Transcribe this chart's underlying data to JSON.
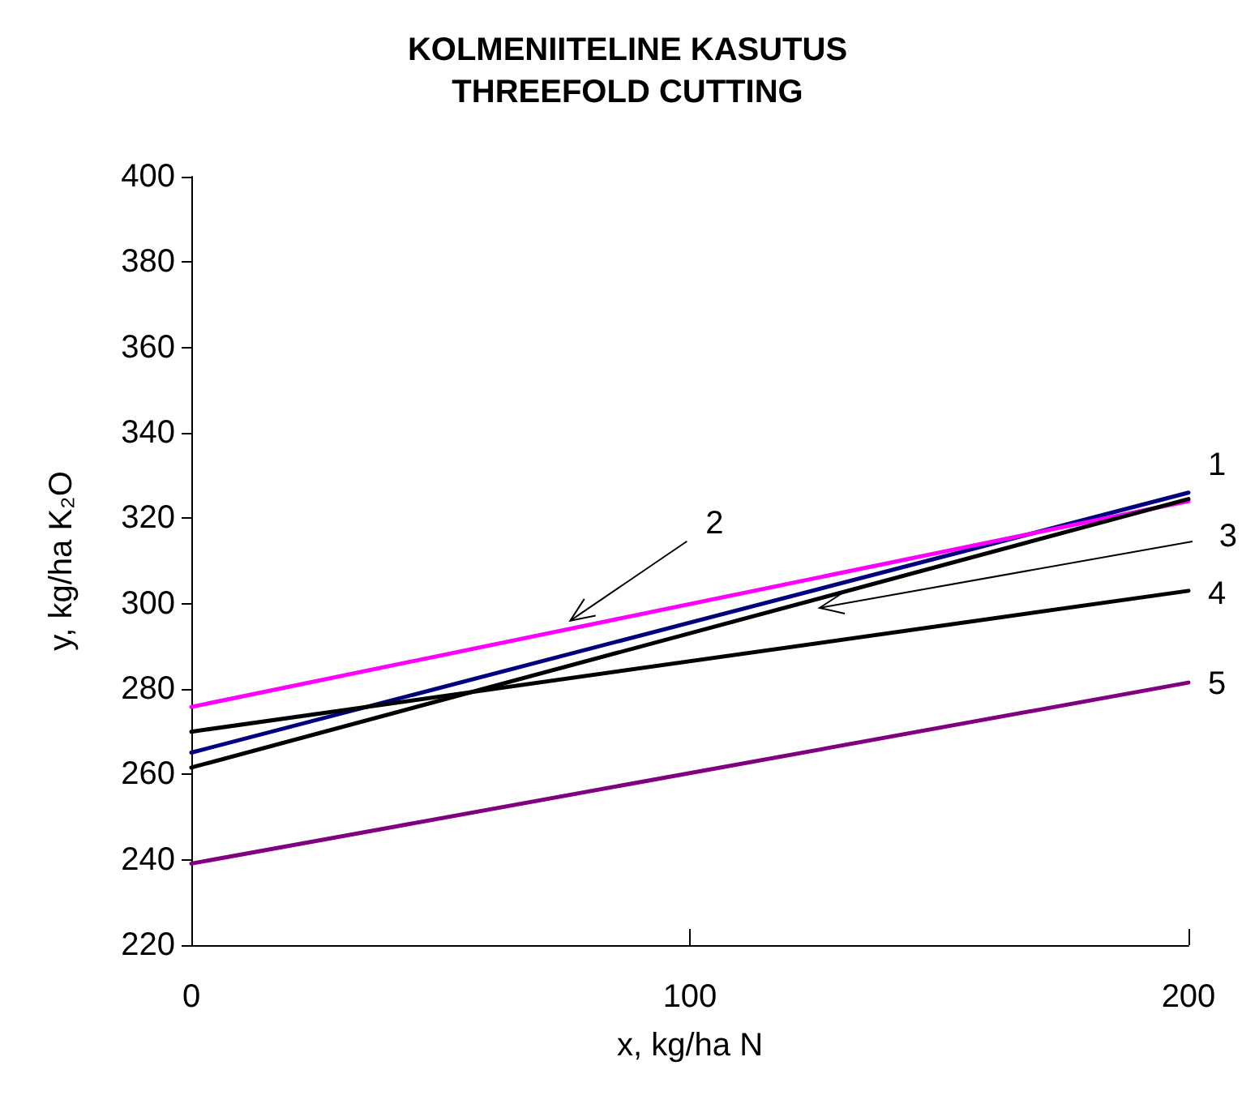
{
  "chart_data": {
    "type": "line",
    "title": "KOLMENIITELINE KASUTUS",
    "subtitle": "THREEFOLD CUTTING",
    "xlabel": "x, kg/ha N",
    "ylabel": "y, kg/ha K₂O",
    "x": [
      0,
      200
    ],
    "series": [
      {
        "color": "#000080",
        "values": [
          265.1,
          326
        ]
      },
      {
        "color": "#ff00ff",
        "values": [
          275.8,
          324
        ]
      },
      {
        "color": "#000000",
        "values": [
          261.6,
          324.5
        ]
      },
      {
        "color": "#000000",
        "values": [
          270,
          303
        ]
      },
      {
        "color": "#800080",
        "values": [
          239.1,
          281.5
        ]
      }
    ],
    "annotations": [
      {
        "text": "1",
        "x": 200,
        "y": 326
      },
      {
        "text": "2",
        "x": 76,
        "y": 296
      },
      {
        "text": "3",
        "x": 126,
        "y": 299
      },
      {
        "text": "4",
        "x": 200,
        "y": 303
      },
      {
        "text": "5",
        "x": 200,
        "y": 281.5
      }
    ],
    "xlim": [
      0,
      200
    ],
    "xticks": [
      0,
      100,
      200
    ],
    "ylim": [
      220,
      400
    ],
    "yticks": [
      220,
      240,
      260,
      280,
      300,
      320,
      340,
      360,
      380,
      400
    ],
    "grid": false,
    "marker": "none",
    "line_style": "solid"
  }
}
